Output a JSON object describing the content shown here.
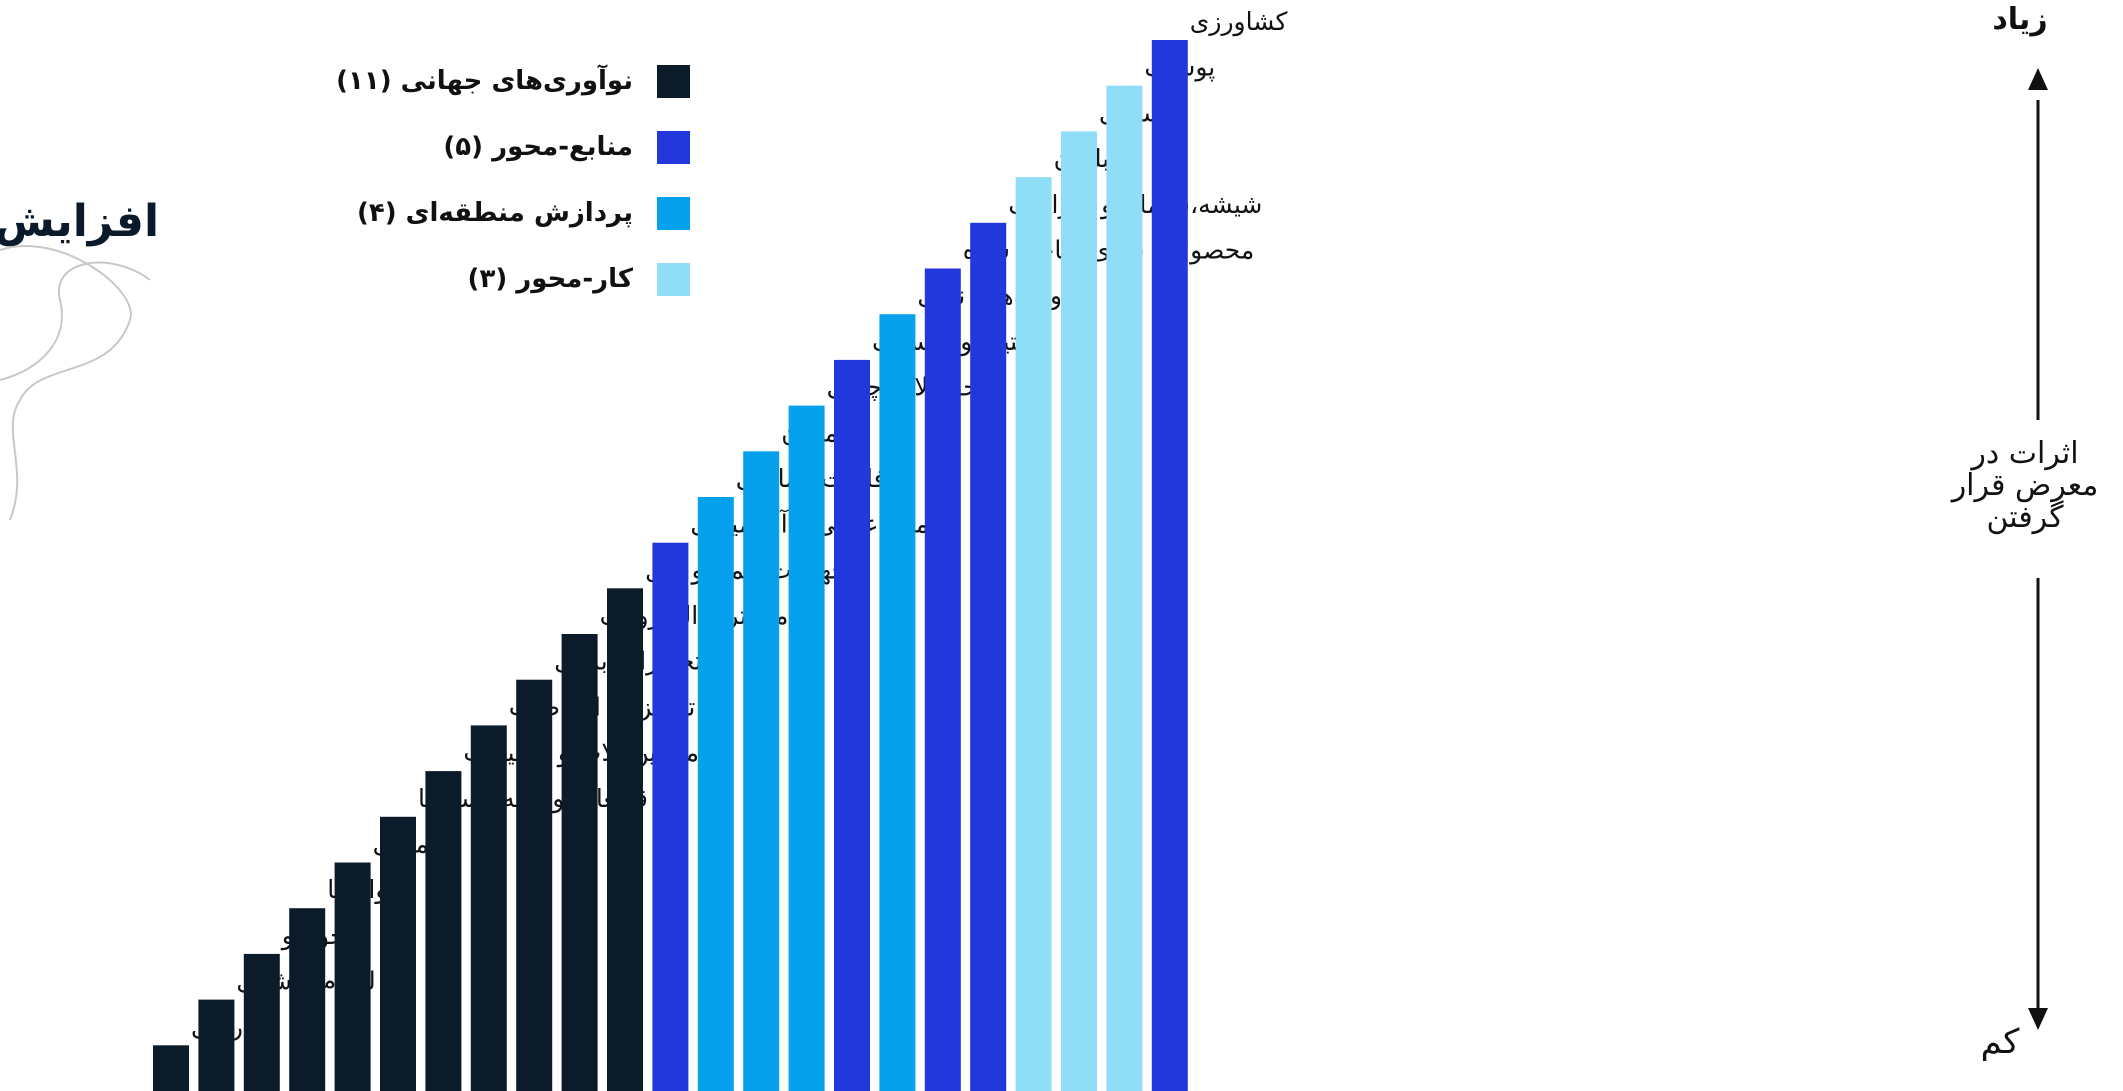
{
  "side_title": "افزایش",
  "legend": [
    {
      "label": "نوآوری‌های جهانی (۱۱)",
      "color": "#0c1b2a"
    },
    {
      "label": "منابع-محور (۵)",
      "color": "#2238dc"
    },
    {
      "label": "پردازش منطقه‌ای (۴)",
      "color": "#06a1ec"
    },
    {
      "label": "کار-محور (۳)",
      "color": "#8fddf6"
    }
  ],
  "axis": {
    "top_label": "زیاد",
    "bottom_label": "کم",
    "middle_label": "اثرات در معرض قرار گرفتن"
  },
  "chart_data": {
    "type": "bar",
    "ylabel": "اثرات در معرض قرار گرفتن",
    "ylim": [
      0,
      23
    ],
    "categories": [
      "دارویی",
      "لوازم پزشکی",
      "خودرو",
      "هوافضا",
      "شیمیایی",
      "قطعات و نیمه رسانا‌ها",
      "ماشین آلات و تجهیزات",
      "تجهیزات ارتباطات",
      "تجهیزات برقی",
      "کامپیوتر و الکترونیک",
      "تجهیزات حمل و نقل",
      "مواد غذایی و آشامیدنی",
      "فلزات اساسی",
      "معدن",
      "محصولات چوبی",
      "لاستیک و پلاستیک",
      "فرآورده‌های نفتی",
      "محصولات فلزی ساخته شده",
      "شیشه،سیمان و سرامیک",
      "مبلمان",
      "نساجی",
      "پوشاک",
      "کشاورزی"
    ],
    "values": [
      1,
      2,
      3,
      4,
      5,
      6,
      7,
      8,
      9,
      10,
      11,
      12,
      13,
      14,
      15,
      16,
      17,
      18,
      19,
      20,
      21,
      22,
      23
    ],
    "groups": [
      "نوآوری‌های جهانی (۱۱)",
      "نوآوری‌های جهانی (۱۱)",
      "نوآوری‌های جهانی (۱۱)",
      "نوآوری‌های جهانی (۱۱)",
      "نوآوری‌های جهانی (۱۱)",
      "نوآوری‌های جهانی (۱۱)",
      "نوآوری‌های جهانی (۱۱)",
      "نوآوری‌های جهانی (۱۱)",
      "نوآوری‌های جهانی (۱۱)",
      "نوآوری‌های جهانی (۱۱)",
      "نوآوری‌های جهانی (۱۱)",
      "منابع-محور (۵)",
      "پردازش منطقه‌ای (۴)",
      "پردازش منطقه‌ای (۴)",
      "پردازش منطقه‌ای (۴)",
      "منابع-محور (۵)",
      "پردازش منطقه‌ای (۴)",
      "منابع-محور (۵)",
      "منابع-محور (۵)",
      "کار-محور (۳)",
      "کار-محور (۳)",
      "کار-محور (۳)",
      "منابع-محور (۵)"
    ],
    "grid": false,
    "legend_position": "top-left"
  }
}
